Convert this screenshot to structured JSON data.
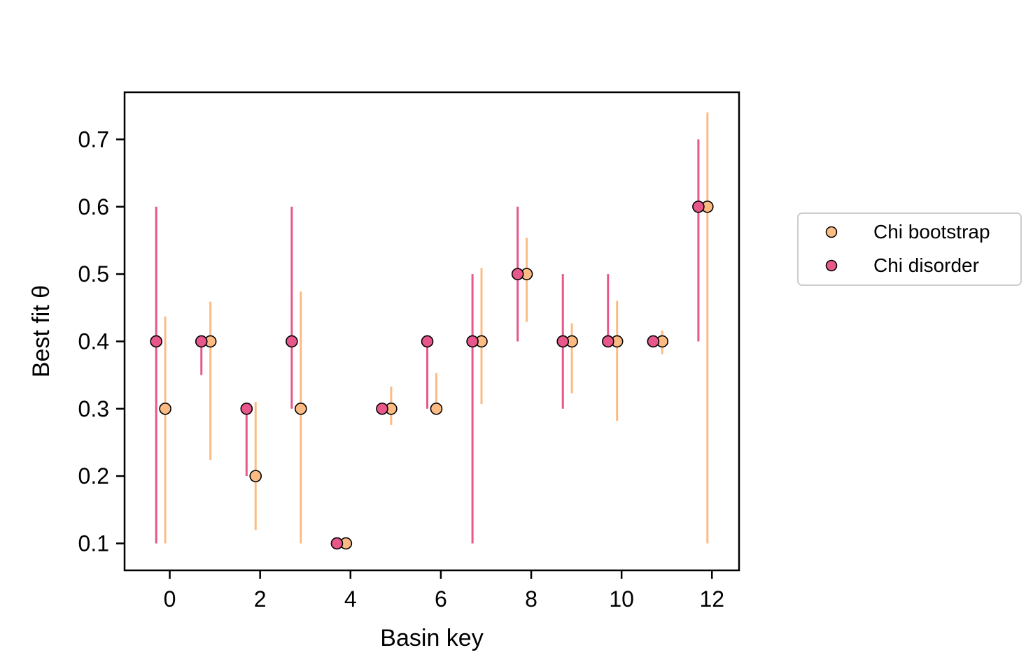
{
  "chart_data": {
    "type": "scatter",
    "title": "",
    "xlabel": "Basin key",
    "ylabel": "Best fit θ",
    "xlim": [
      -1,
      12.6
    ],
    "ylim": [
      0.06,
      0.77
    ],
    "xticks": [
      0,
      2,
      4,
      6,
      8,
      10,
      12
    ],
    "yticks": [
      0.1,
      0.2,
      0.3,
      0.4,
      0.5,
      0.6,
      0.7
    ],
    "grid": false,
    "legend_position": "outside-right",
    "series": [
      {
        "name": "Chi bootstrap",
        "color": "#fdbb84",
        "points": [
          {
            "x": -0.1,
            "y": 0.3,
            "ylow": 0.1,
            "yhigh": 0.437
          },
          {
            "x": 0.9,
            "y": 0.4,
            "ylow": 0.224,
            "yhigh": 0.459
          },
          {
            "x": 1.9,
            "y": 0.2,
            "ylow": 0.12,
            "yhigh": 0.31
          },
          {
            "x": 2.9,
            "y": 0.3,
            "ylow": 0.1,
            "yhigh": 0.474
          },
          {
            "x": 3.9,
            "y": 0.1,
            "ylow": 0.1,
            "yhigh": 0.1
          },
          {
            "x": 4.9,
            "y": 0.3,
            "ylow": 0.276,
            "yhigh": 0.333
          },
          {
            "x": 5.9,
            "y": 0.3,
            "ylow": 0.3,
            "yhigh": 0.353
          },
          {
            "x": 6.9,
            "y": 0.4,
            "ylow": 0.307,
            "yhigh": 0.509
          },
          {
            "x": 7.9,
            "y": 0.5,
            "ylow": 0.429,
            "yhigh": 0.554
          },
          {
            "x": 8.9,
            "y": 0.4,
            "ylow": 0.323,
            "yhigh": 0.427
          },
          {
            "x": 9.9,
            "y": 0.4,
            "ylow": 0.282,
            "yhigh": 0.46
          },
          {
            "x": 10.9,
            "y": 0.4,
            "ylow": 0.381,
            "yhigh": 0.416
          },
          {
            "x": 11.9,
            "y": 0.6,
            "ylow": 0.1,
            "yhigh": 0.74
          }
        ]
      },
      {
        "name": "Chi disorder",
        "color": "#e7578b",
        "points": [
          {
            "x": -0.3,
            "y": 0.4,
            "ylow": 0.1,
            "yhigh": 0.6
          },
          {
            "x": 0.7,
            "y": 0.4,
            "ylow": 0.35,
            "yhigh": 0.4
          },
          {
            "x": 1.7,
            "y": 0.3,
            "ylow": 0.2,
            "yhigh": 0.3
          },
          {
            "x": 2.7,
            "y": 0.4,
            "ylow": 0.3,
            "yhigh": 0.6
          },
          {
            "x": 3.7,
            "y": 0.1,
            "ylow": 0.1,
            "yhigh": 0.1
          },
          {
            "x": 4.7,
            "y": 0.3,
            "ylow": 0.3,
            "yhigh": 0.3
          },
          {
            "x": 5.7,
            "y": 0.4,
            "ylow": 0.3,
            "yhigh": 0.4
          },
          {
            "x": 6.7,
            "y": 0.4,
            "ylow": 0.1,
            "yhigh": 0.5
          },
          {
            "x": 7.7,
            "y": 0.5,
            "ylow": 0.4,
            "yhigh": 0.6
          },
          {
            "x": 8.7,
            "y": 0.4,
            "ylow": 0.3,
            "yhigh": 0.5
          },
          {
            "x": 9.7,
            "y": 0.4,
            "ylow": 0.4,
            "yhigh": 0.5
          },
          {
            "x": 10.7,
            "y": 0.4,
            "ylow": 0.4,
            "yhigh": 0.4
          },
          {
            "x": 11.7,
            "y": 0.6,
            "ylow": 0.4,
            "yhigh": 0.7
          }
        ]
      }
    ]
  }
}
